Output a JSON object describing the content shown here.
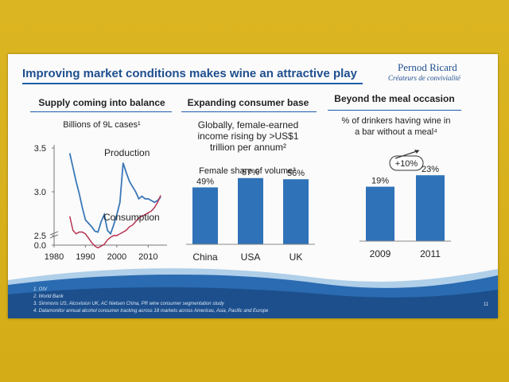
{
  "slide": {
    "title": "Improving market conditions makes wine an attractive play",
    "brand": "Pernod Ricard",
    "tagline": "Créateurs de convivialité",
    "page_number": "11"
  },
  "sections": {
    "supply": {
      "heading": "Supply coming into balance",
      "unit_text": "Billions of 9L cases¹"
    },
    "consumer": {
      "heading": "Expanding consumer base",
      "text_lines": [
        "Globally, female-earned",
        "income rising by >US$1",
        "trillion per annum²"
      ],
      "chart_title": "Female share of volume³"
    },
    "meal": {
      "heading": "Beyond the meal occasion",
      "text_lines": [
        "% of drinkers having wine in",
        "a bar without a meal⁴"
      ],
      "growth_label": "+10%"
    }
  },
  "footnotes": [
    "1.   OIV",
    "2.   World Bank",
    "3.   Simmons US, Alcovision UK, AC Nielsen China, PR wine consumer segmentation study",
    "4.   Datamonitor annual alcohol consumer tracking across 18 markets across Americas, Asia, Pacific and Europe"
  ],
  "colors": {
    "accent": "#1f5da6",
    "production": "#3a78b8",
    "consumption": "#b52a4a",
    "bar": "#2f72b8"
  },
  "chart_data": [
    {
      "type": "line",
      "title": "",
      "xlabel": "",
      "ylabel": "",
      "xlim": [
        1980,
        2016
      ],
      "ylim": [
        0.0,
        3.5
      ],
      "x_ticks": [
        "1980",
        "1990",
        "2000",
        "2010"
      ],
      "y_ticks": [
        "0.0",
        "2.5",
        "3.0",
        "3.5"
      ],
      "axis_break": true,
      "series": [
        {
          "name": "Production",
          "x": [
            1985,
            1986,
            1987,
            1988,
            1989,
            1990,
            1991,
            1992,
            1993,
            1994,
            1995,
            1996,
            1997,
            1998,
            1999,
            2000,
            2001,
            2002,
            2003,
            2004,
            2005,
            2006,
            2007,
            2008,
            2009,
            2010,
            2011,
            2012,
            2013,
            2014
          ],
          "y": [
            3.44,
            3.28,
            3.12,
            2.98,
            2.82,
            2.68,
            2.64,
            2.6,
            2.55,
            2.54,
            2.66,
            2.74,
            2.56,
            2.52,
            2.62,
            2.74,
            2.88,
            3.33,
            3.22,
            3.12,
            3.06,
            3.0,
            2.92,
            2.95,
            2.92,
            2.92,
            2.9,
            2.88,
            2.9,
            2.94
          ]
        },
        {
          "name": "Consumption",
          "x": [
            1985,
            1986,
            1987,
            1988,
            1989,
            1990,
            1991,
            1992,
            1993,
            1994,
            1995,
            1996,
            1997,
            1998,
            1999,
            2000,
            2001,
            2002,
            2003,
            2004,
            2005,
            2006,
            2007,
            2008,
            2009,
            2010,
            2011,
            2012,
            2013,
            2014
          ],
          "y": [
            2.72,
            2.56,
            2.52,
            2.54,
            2.54,
            2.52,
            2.47,
            2.42,
            2.38,
            2.36,
            2.38,
            2.4,
            2.45,
            2.48,
            2.5,
            2.5,
            2.52,
            2.54,
            2.56,
            2.6,
            2.62,
            2.66,
            2.7,
            2.72,
            2.74,
            2.76,
            2.78,
            2.82,
            2.88,
            2.96
          ]
        }
      ],
      "labels": [
        "Production",
        "Consumption"
      ]
    },
    {
      "type": "bar",
      "title": "Female share of volume³",
      "categories": [
        "China",
        "USA",
        "UK"
      ],
      "values": [
        49,
        57,
        56
      ],
      "value_labels": [
        "49%",
        "57%",
        "56%"
      ],
      "ylim": [
        0,
        100
      ]
    },
    {
      "type": "bar",
      "title": "",
      "categories": [
        "2009",
        "2011"
      ],
      "values": [
        19,
        23
      ],
      "value_labels": [
        "19%",
        "23%"
      ],
      "ylim": [
        0,
        40
      ]
    }
  ]
}
